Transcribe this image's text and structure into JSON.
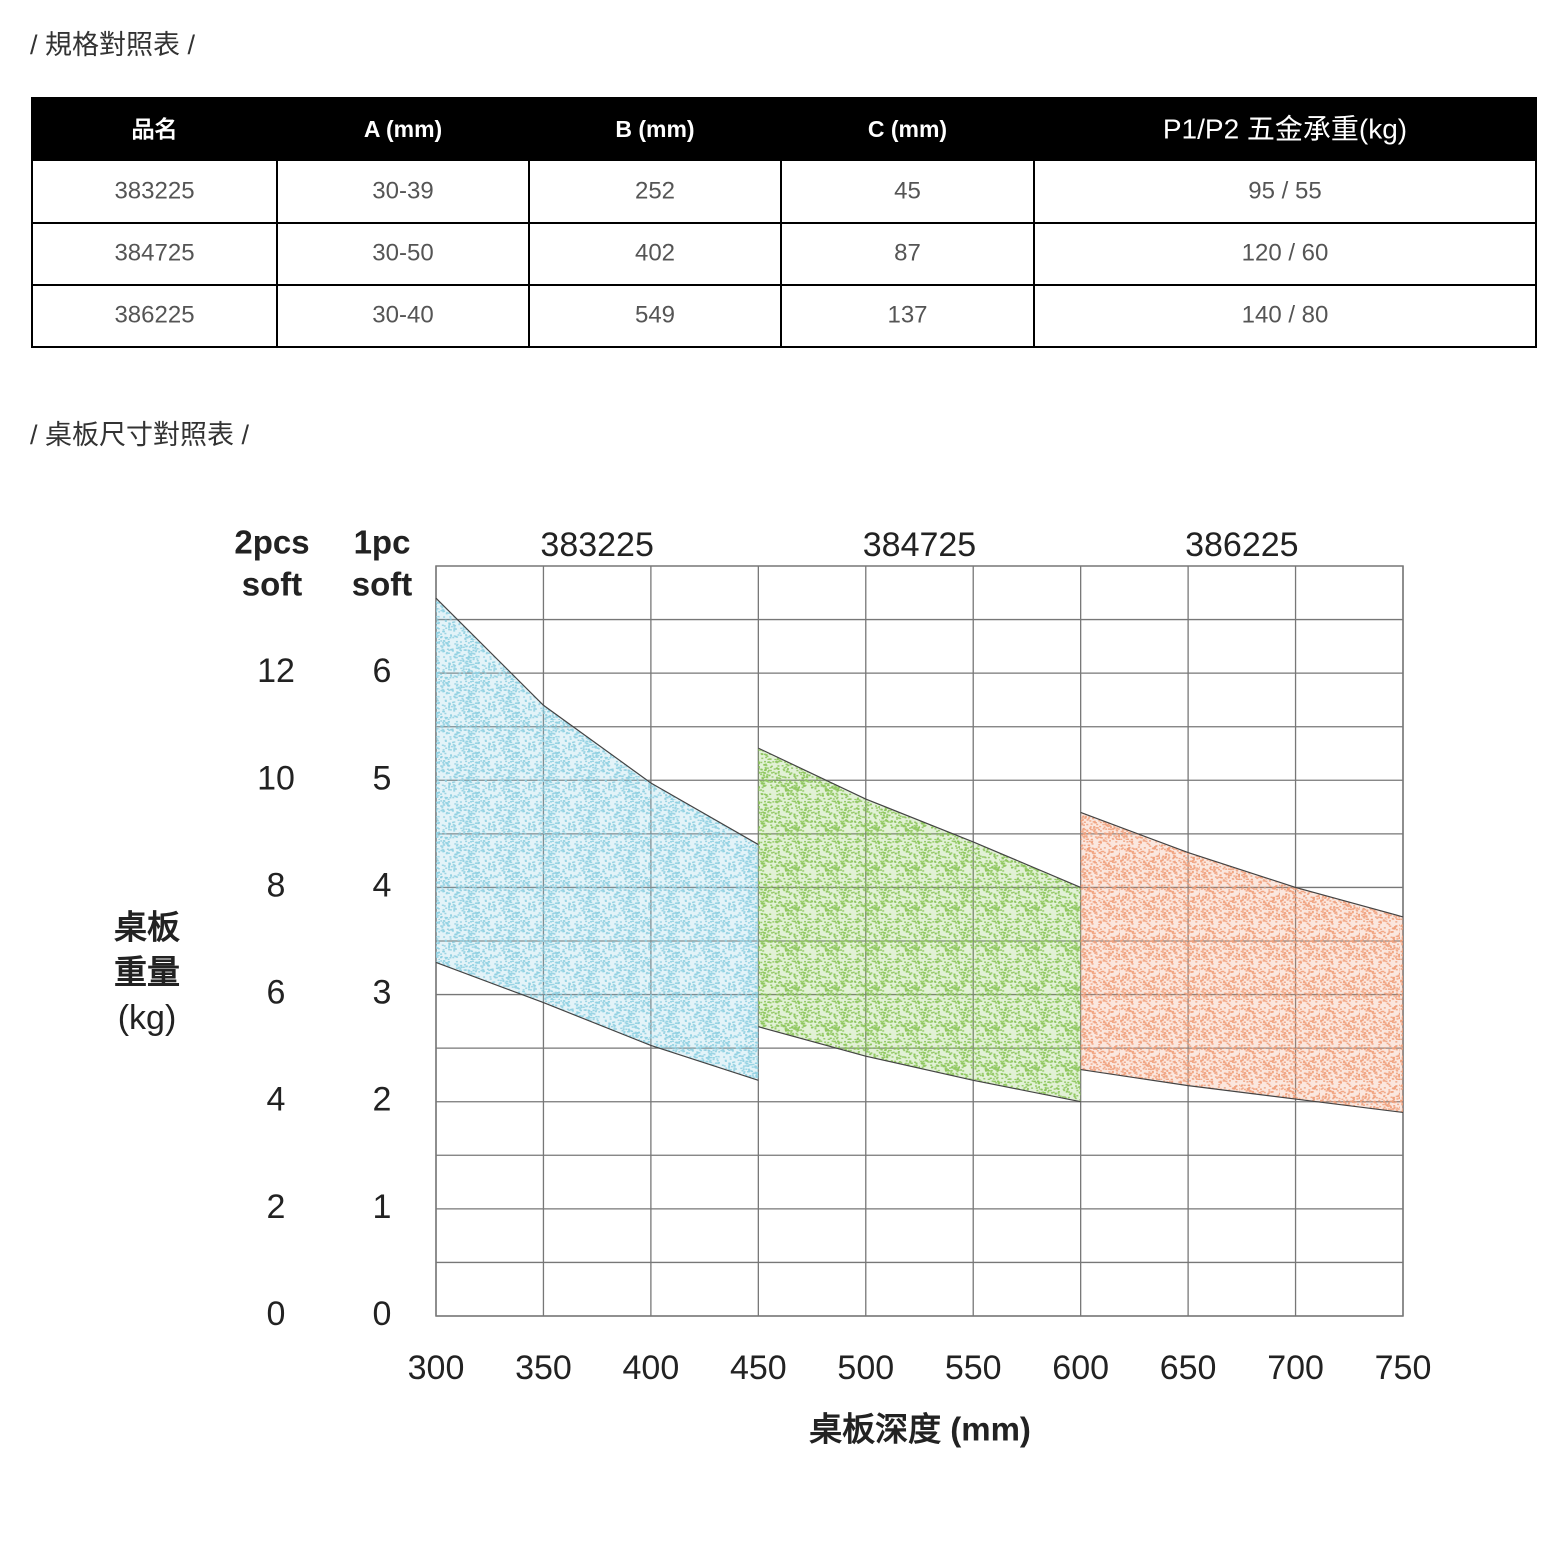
{
  "spec_title": "/ 規格對照表 /",
  "table": {
    "headers": [
      "品名",
      "A (mm)",
      "B (mm)",
      "C (mm)",
      "P1/P2 五金承重(kg)"
    ],
    "rows": [
      [
        "383225",
        "30-39",
        "252",
        "45",
        "95 / 55"
      ],
      [
        "384725",
        "30-50",
        "402",
        "87",
        "120 / 60"
      ],
      [
        "386225",
        "30-40",
        "549",
        "137",
        "140 / 80"
      ]
    ]
  },
  "size_title": "/ 桌板尺寸對照表 /",
  "chart_data": {
    "type": "band",
    "y_header": [
      "2pcs",
      "soft"
    ],
    "y2_header": [
      "1pc",
      "soft"
    ],
    "y_label": [
      "桌板",
      "重量",
      "(kg)"
    ],
    "x_label": "桌板深度 (mm)",
    "xlim": [
      300,
      750
    ],
    "xticks": [
      300,
      350,
      400,
      450,
      500,
      550,
      600,
      650,
      700,
      750
    ],
    "ylim": [
      0,
      14
    ],
    "yticks": [
      0,
      2,
      4,
      6,
      8,
      10,
      12
    ],
    "yticks_minor": [
      1,
      3,
      5,
      7,
      9,
      11,
      13
    ],
    "y2lim": [
      0,
      7
    ],
    "y2ticks": [
      0,
      1,
      2,
      3,
      4,
      5,
      6
    ],
    "grid": true,
    "series": [
      {
        "name": "383225",
        "color": "#8fd0e2",
        "x": [
          300,
          350,
          400,
          450
        ],
        "upper": [
          13.4,
          11.4,
          9.95,
          8.8
        ],
        "lower": [
          6.6,
          5.85,
          5.05,
          4.4
        ]
      },
      {
        "name": "384725",
        "color": "#8cc65a",
        "x": [
          450,
          500,
          550,
          600
        ],
        "upper": [
          10.6,
          9.65,
          8.85,
          8.0
        ],
        "lower": [
          5.4,
          4.85,
          4.4,
          4.0
        ]
      },
      {
        "name": "386225",
        "color": "#f0a07c",
        "x": [
          600,
          650,
          700,
          750
        ],
        "upper": [
          9.4,
          8.65,
          8.0,
          7.45
        ],
        "lower": [
          4.6,
          4.3,
          4.05,
          3.8
        ]
      }
    ]
  }
}
